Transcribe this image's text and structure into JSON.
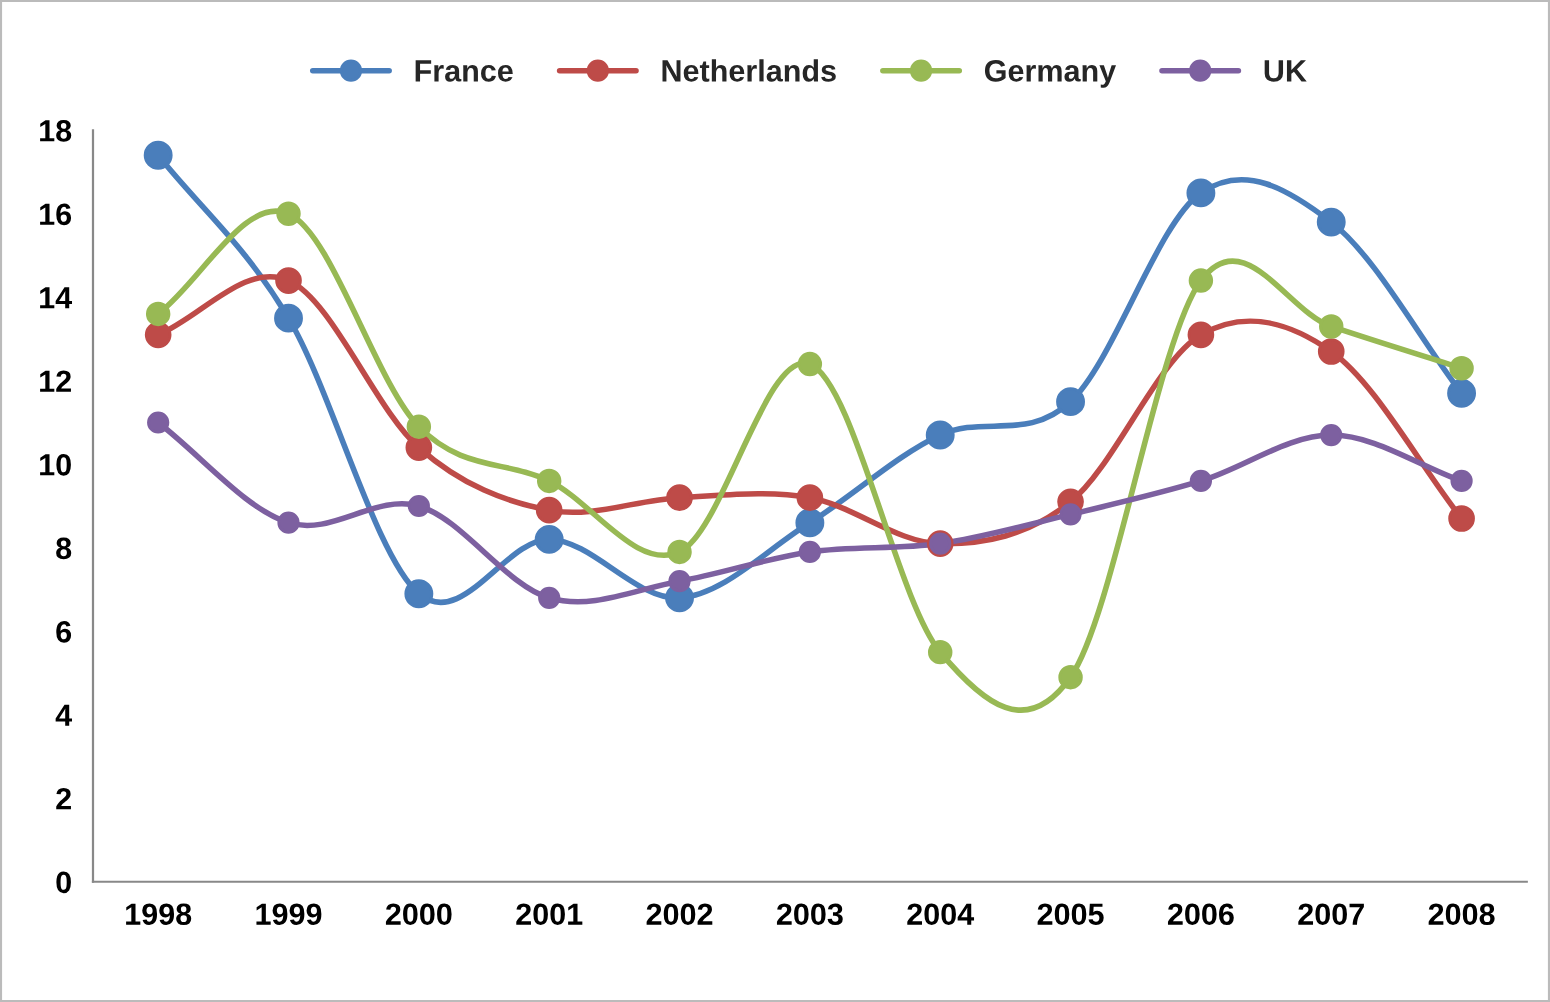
{
  "chart_data": {
    "type": "line",
    "categories": [
      "1998",
      "1999",
      "2000",
      "2001",
      "2002",
      "2003",
      "2004",
      "2005",
      "2006",
      "2007",
      "2008"
    ],
    "series": [
      {
        "name": "France",
        "color": "#4a7ebb",
        "values": [
          17.4,
          13.5,
          6.9,
          8.2,
          6.8,
          8.6,
          10.7,
          11.5,
          16.5,
          15.8,
          11.7
        ]
      },
      {
        "name": "Netherlands",
        "color": "#be4b48",
        "values": [
          13.1,
          14.4,
          10.4,
          8.9,
          9.2,
          9.2,
          8.1,
          9.1,
          13.1,
          12.7,
          8.7
        ]
      },
      {
        "name": "Germany",
        "color": "#98b954",
        "values": [
          13.6,
          16.0,
          10.9,
          9.6,
          7.9,
          12.4,
          5.5,
          4.9,
          14.4,
          13.3,
          12.3
        ]
      },
      {
        "name": "UK",
        "color": "#7d60a0",
        "values": [
          11.0,
          8.6,
          9.0,
          6.8,
          7.2,
          7.9,
          8.1,
          8.8,
          9.6,
          10.7,
          9.6
        ]
      }
    ],
    "ylim": [
      0,
      18
    ],
    "yticks": [
      0,
      2,
      4,
      6,
      8,
      10,
      12,
      14,
      16,
      18
    ],
    "marker": "circle",
    "line_style": "solid",
    "grid": false,
    "legend": "top"
  }
}
